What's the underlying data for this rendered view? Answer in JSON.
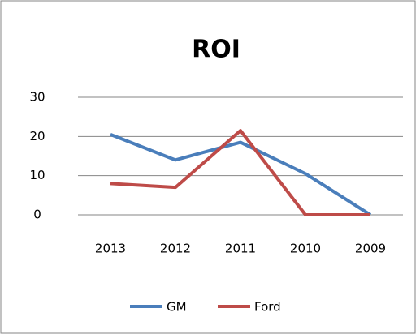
{
  "chart_data": {
    "type": "line",
    "title": "ROI",
    "categories": [
      "2013",
      "2012",
      "2011",
      "2010",
      "2009"
    ],
    "series": [
      {
        "name": "GM",
        "color": "#4a7ebb",
        "values": [
          20.5,
          14,
          18.5,
          10.5,
          0
        ]
      },
      {
        "name": "Ford",
        "color": "#be4b48",
        "values": [
          8,
          7,
          21.5,
          0,
          0
        ]
      }
    ],
    "ylim": [
      0,
      30
    ],
    "yticks": [
      0,
      10,
      20,
      30
    ],
    "grid": true,
    "legend": "bottom"
  }
}
